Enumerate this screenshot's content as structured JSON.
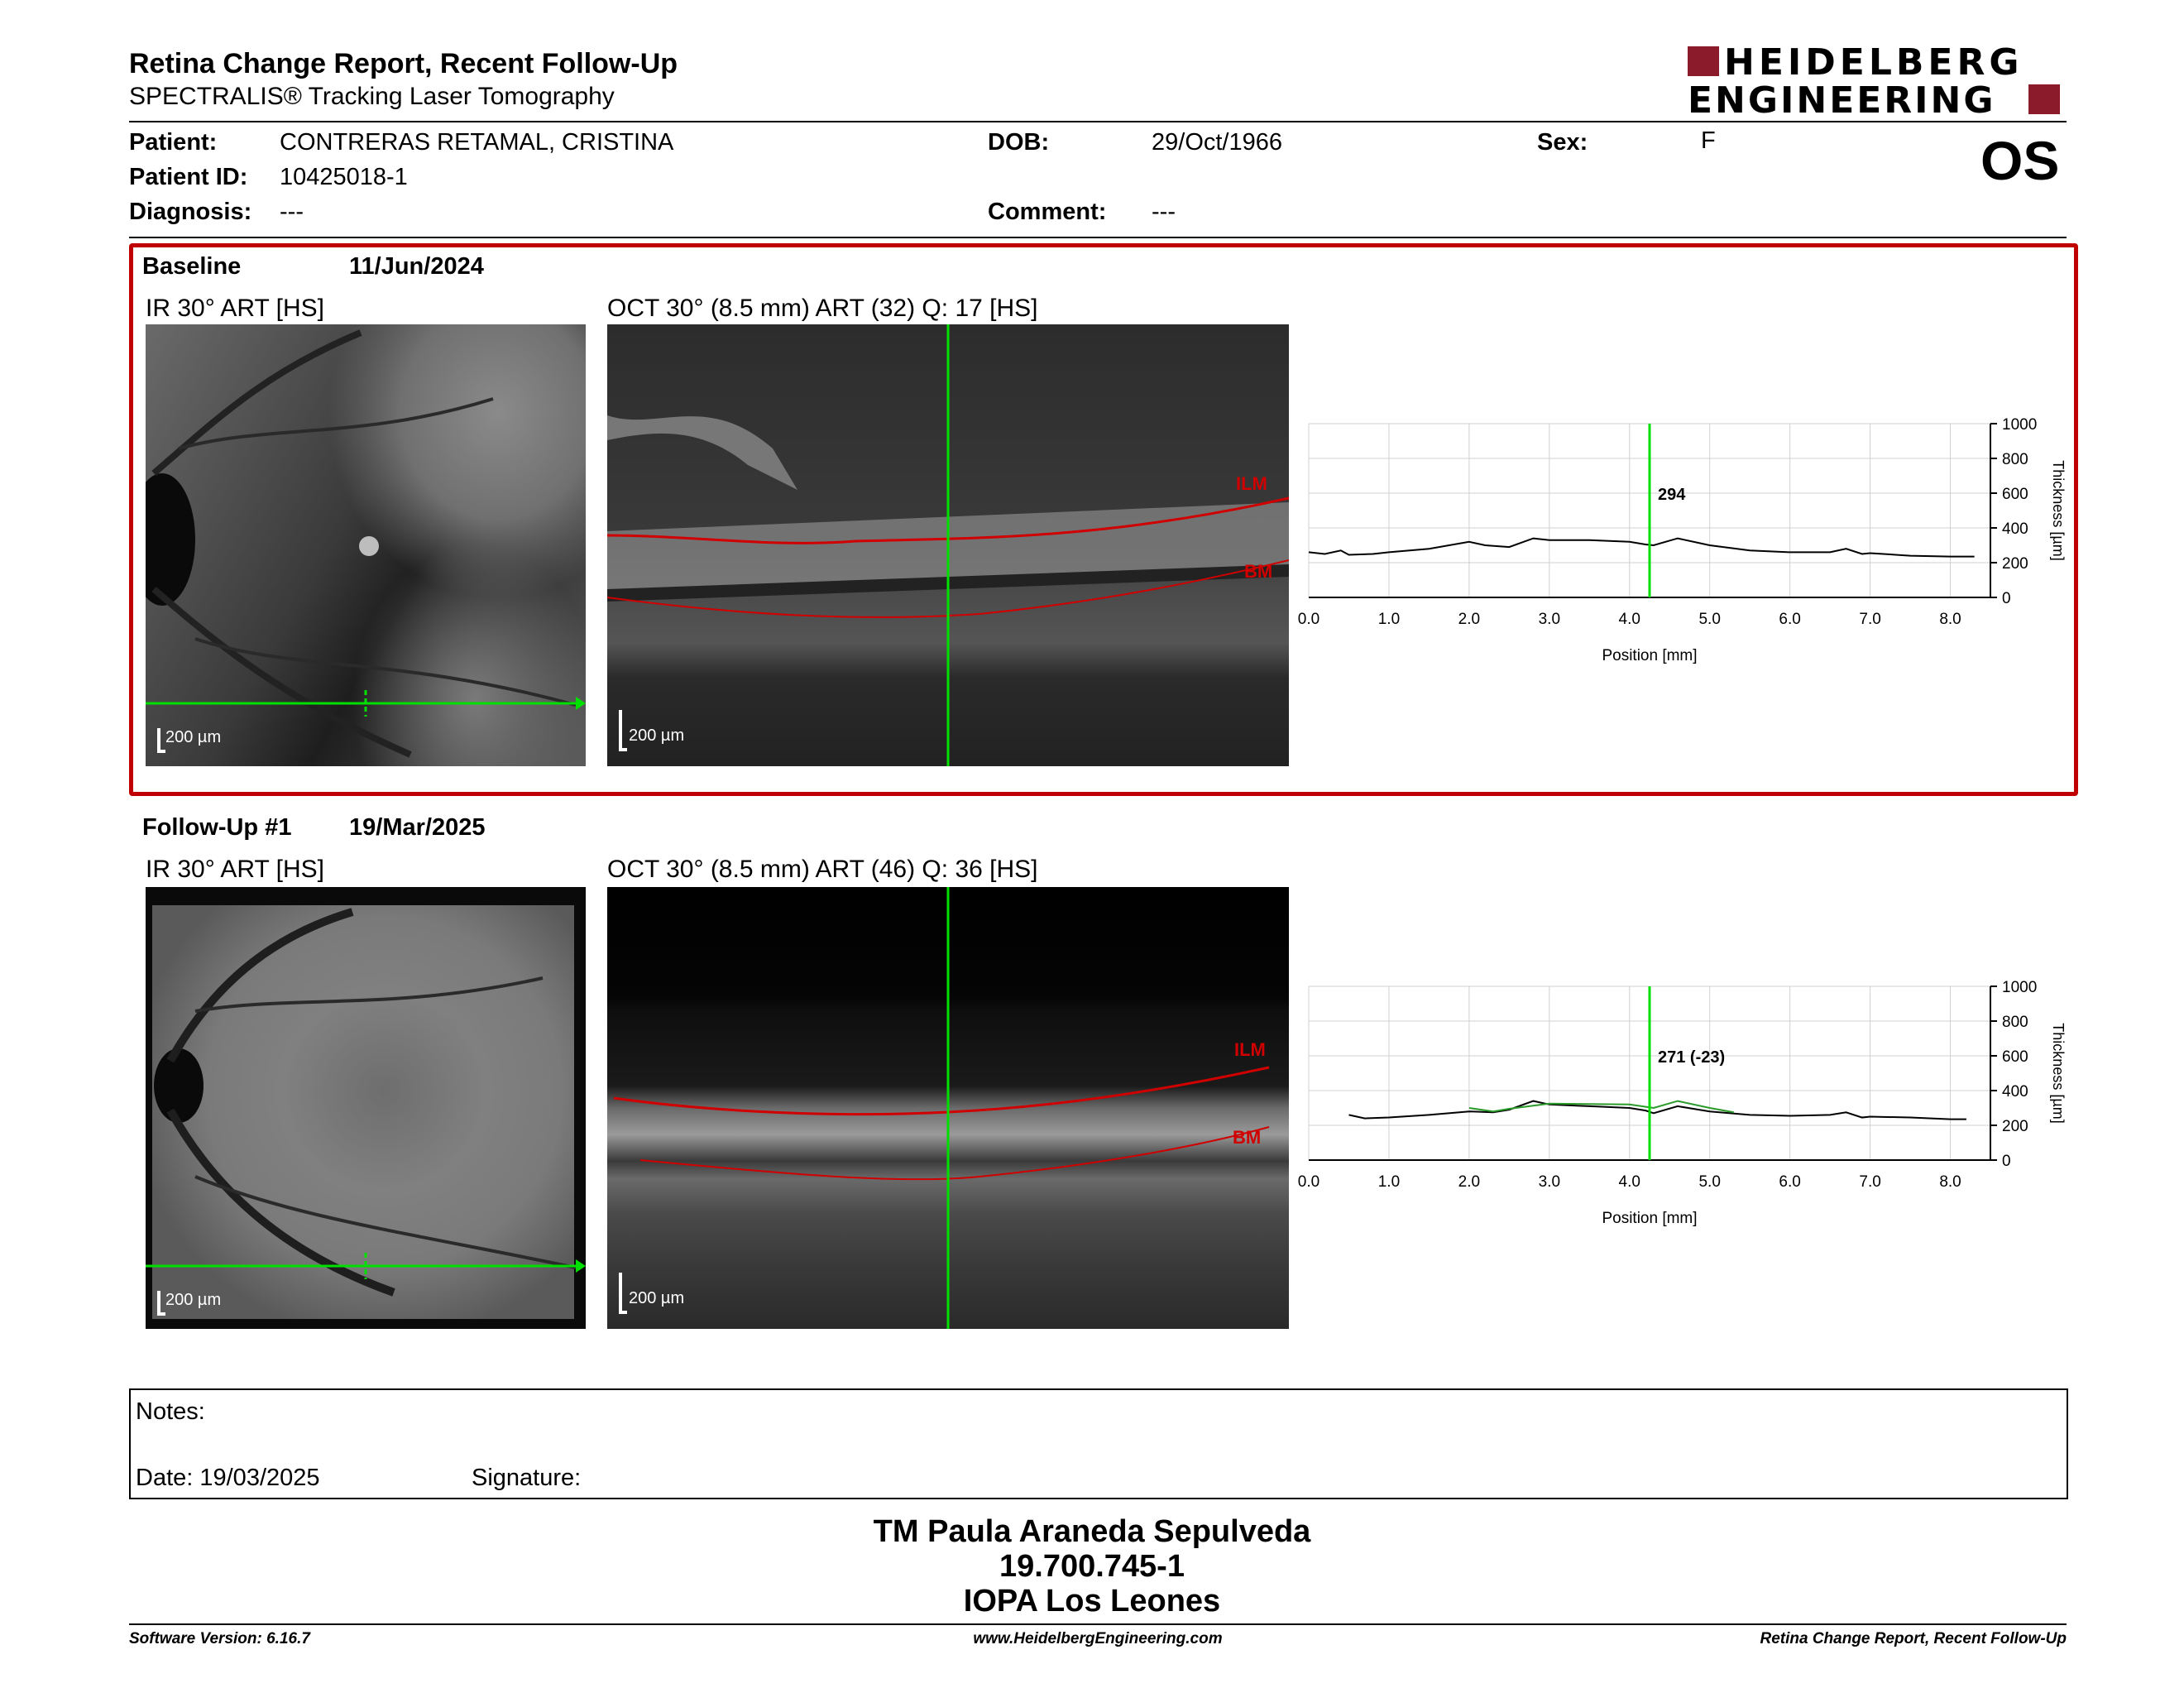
{
  "header": {
    "title": "Retina Change Report, Recent Follow-Up",
    "subtitle": "SPECTRALIS® Tracking Laser Tomography",
    "logo_line1": "HEIDELBERG",
    "logo_line2": "ENGINEERING",
    "eye": "OS"
  },
  "patient": {
    "patient_label": "Patient:",
    "patient_value": "CONTRERAS RETAMAL, CRISTINA",
    "id_label": "Patient ID:",
    "id_value": "10425018-1",
    "diagnosis_label": "Diagnosis:",
    "diagnosis_value": "---",
    "dob_label": "DOB:",
    "dob_value": "29/Oct/1966",
    "comment_label": "Comment:",
    "comment_value": "---",
    "sex_label": "Sex:",
    "sex_value": "F"
  },
  "baseline": {
    "label": "Baseline",
    "date": "11/Jun/2024",
    "ir_title": "IR 30° ART [HS]",
    "oct_title": "OCT 30° (8.5 mm) ART (32) Q: 17 [HS]",
    "scale": "200 µm",
    "ilm": "ILM",
    "bm": "BM",
    "accent": "#c00000"
  },
  "followup": {
    "label": "Follow-Up #1",
    "date": "19/Mar/2025",
    "ir_title": "IR 30° ART [HS]",
    "oct_title": "OCT 30° (8.5 mm) ART (46) Q: 36 [HS]",
    "scale": "200 µm",
    "ilm": "ILM",
    "bm": "BM"
  },
  "chart_data": [
    {
      "type": "line",
      "xlabel": "Position [mm]",
      "ylabel": "Thickness [µm]",
      "xlim": [
        0,
        8.5
      ],
      "ylim": [
        0,
        1000
      ],
      "x_ticks": [
        "0.0",
        "1.0",
        "2.0",
        "3.0",
        "4.0",
        "5.0",
        "6.0",
        "7.0",
        "8.0"
      ],
      "y_ticks": [
        "0",
        "200",
        "400",
        "600",
        "800",
        "1000"
      ],
      "marker_x": 4.25,
      "marker_label": "294",
      "series": [
        {
          "x": [
            0.0,
            0.2,
            0.4,
            0.5,
            0.8,
            1.0,
            1.5,
            2.0,
            2.2,
            2.5,
            2.8,
            3.0,
            3.5,
            4.0,
            4.2,
            4.3,
            4.6,
            5.0,
            5.5,
            6.0,
            6.5,
            6.7,
            6.9,
            7.0,
            7.5,
            8.0,
            8.3
          ],
          "values": [
            260,
            250,
            270,
            245,
            250,
            260,
            280,
            320,
            300,
            290,
            340,
            330,
            330,
            320,
            305,
            300,
            340,
            300,
            270,
            260,
            260,
            280,
            250,
            255,
            240,
            235,
            235
          ]
        }
      ]
    },
    {
      "type": "line",
      "xlabel": "Position [mm]",
      "ylabel": "Thickness [µm]",
      "xlim": [
        0,
        8.5
      ],
      "ylim": [
        0,
        1000
      ],
      "x_ticks": [
        "0.0",
        "1.0",
        "2.0",
        "3.0",
        "4.0",
        "5.0",
        "6.0",
        "7.0",
        "8.0"
      ],
      "y_ticks": [
        "0",
        "200",
        "400",
        "600",
        "800",
        "1000"
      ],
      "marker_x": 4.25,
      "marker_label": "271 (-23)",
      "series": [
        {
          "x": [
            0.5,
            0.7,
            1.0,
            1.5,
            2.0,
            2.3,
            2.5,
            2.8,
            3.0,
            3.5,
            4.0,
            4.2,
            4.3,
            4.6,
            5.0,
            5.5,
            6.0,
            6.5,
            6.7,
            6.9,
            7.0,
            7.5,
            8.0,
            8.2
          ],
          "values": [
            260,
            240,
            245,
            260,
            280,
            275,
            290,
            340,
            320,
            310,
            300,
            285,
            270,
            310,
            280,
            260,
            255,
            260,
            275,
            245,
            250,
            245,
            235,
            235
          ],
          "color": "#000000"
        },
        {
          "x": [
            2.0,
            2.3,
            2.5,
            3.0,
            4.0,
            4.3,
            4.6,
            5.0,
            5.3
          ],
          "values": [
            300,
            280,
            295,
            325,
            320,
            300,
            340,
            300,
            275
          ],
          "color": "#2a9a2a"
        }
      ]
    }
  ],
  "notes": {
    "label": "Notes:",
    "date_label": "Date: 19/03/2025",
    "signature_label": "Signature:"
  },
  "signer": {
    "name": "TM Paula Araneda Sepulveda",
    "rut": "19.700.745-1",
    "org": "IOPA Los Leones"
  },
  "footer": {
    "version": "Software Version: 6.16.7",
    "website": "www.HeidelbergEngineering.com",
    "report": "Retina Change Report, Recent Follow-Up"
  }
}
